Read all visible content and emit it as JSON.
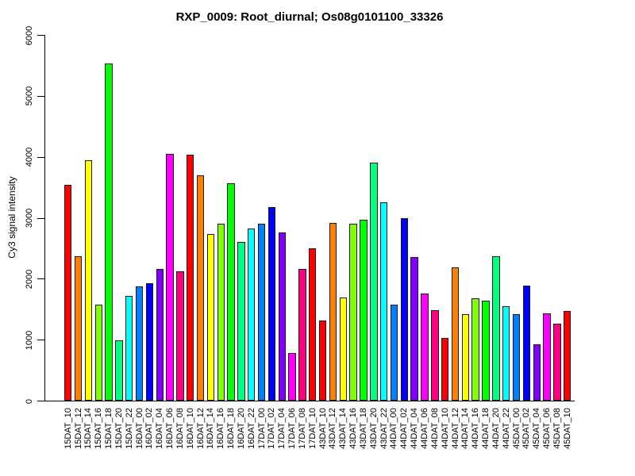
{
  "chart_data": {
    "type": "bar",
    "title": "RXP_0009: Root_diurnal; Os08g0101100_33326",
    "xlabel": "",
    "ylabel": "Cy3 signal intensity",
    "ylim": [
      0,
      6000
    ],
    "yticks": [
      0,
      1000,
      2000,
      3000,
      4000,
      5000,
      6000
    ],
    "grid": false,
    "legend": false,
    "background": "#FFFFFF",
    "bar_border_color": "#000000",
    "x_tick_rotation": 90,
    "y_tick_rotation": 90,
    "palette_rainbow12": [
      "#FF0000",
      "#FF8000",
      "#FFFF00",
      "#80FF00",
      "#00FF00",
      "#00FF80",
      "#00FFFF",
      "#0080FF",
      "#0000FF",
      "#8000FF",
      "#FF00FF",
      "#FF0080"
    ],
    "categories": [
      "15DAT_10",
      "15DAT_12",
      "15DAT_14",
      "15DAT_16",
      "15DAT_18",
      "15DAT_20",
      "15DAT_22",
      "16DAT_00",
      "16DAT_02",
      "16DAT_04",
      "16DAT_06",
      "16DAT_08",
      "16DAT_10",
      "16DAT_12",
      "16DAT_14",
      "16DAT_16",
      "16DAT_18",
      "16DAT_20",
      "16DAT_22",
      "17DAT_00",
      "17DAT_02",
      "17DAT_04",
      "17DAT_06",
      "17DAT_08",
      "17DAT_10",
      "43DAT_10",
      "43DAT_12",
      "43DAT_14",
      "43DAT_16",
      "43DAT_18",
      "43DAT_20",
      "43DAT_22",
      "44DAT_00",
      "44DAT_02",
      "44DAT_04",
      "44DAT_06",
      "44DAT_08",
      "44DAT_10",
      "44DAT_12",
      "44DAT_14",
      "44DAT_16",
      "44DAT_18",
      "44DAT_20",
      "44DAT_22",
      "45DAT_00",
      "45DAT_02",
      "45DAT_04",
      "45DAT_06",
      "45DAT_08",
      "45DAT_10"
    ],
    "values": [
      3540,
      2370,
      3940,
      1580,
      5530,
      990,
      1720,
      1880,
      1930,
      2160,
      4050,
      2120,
      4040,
      3700,
      2730,
      2900,
      3560,
      2600,
      2820,
      2900,
      3170,
      2760,
      780,
      2160,
      2500,
      1320,
      2910,
      1690,
      2900,
      2970,
      3910,
      3250,
      1570,
      3000,
      2350,
      1760,
      1480,
      1030,
      2190,
      1420,
      1680,
      1640,
      2370,
      1550,
      1420,
      1890,
      930,
      1430,
      1260,
      1470
    ],
    "colors": [
      "#FF0000",
      "#FF8000",
      "#FFFF00",
      "#80FF00",
      "#00FF00",
      "#00FF80",
      "#00FFFF",
      "#0080FF",
      "#0000FF",
      "#8000FF",
      "#FF00FF",
      "#FF0080",
      "#FF0000",
      "#FF8000",
      "#FFFF00",
      "#80FF00",
      "#00FF00",
      "#00FF80",
      "#00FFFF",
      "#0080FF",
      "#0000FF",
      "#8000FF",
      "#FF00FF",
      "#FF0080",
      "#FF0000",
      "#FF0000",
      "#FF8000",
      "#FFFF00",
      "#80FF00",
      "#00FF00",
      "#00FF80",
      "#00FFFF",
      "#0080FF",
      "#0000FF",
      "#8000FF",
      "#FF00FF",
      "#FF0080",
      "#FF0000",
      "#FF8000",
      "#FFFF00",
      "#80FF00",
      "#00FF00",
      "#00FF80",
      "#00FFFF",
      "#0080FF",
      "#0000FF",
      "#8000FF",
      "#FF00FF",
      "#FF0080",
      "#FF0000"
    ]
  }
}
